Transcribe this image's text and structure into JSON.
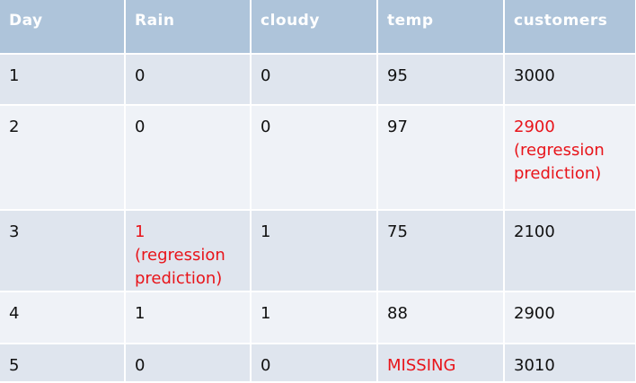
{
  "table": {
    "headers": [
      "Day",
      "Rain",
      "cloudy",
      "temp",
      "customers"
    ],
    "rows": [
      {
        "day": "1",
        "rain": "0",
        "cloudy": "0",
        "temp": "95",
        "customers": "3000"
      },
      {
        "day": "2",
        "rain": "0",
        "cloudy": "0",
        "temp": "97",
        "customers": "2900",
        "customers_note": "(regression prediction)"
      },
      {
        "day": "3",
        "rain": "1",
        "rain_note": "(regression prediction)",
        "cloudy": "1",
        "temp": "75",
        "customers": "2100"
      },
      {
        "day": "4",
        "rain": "1",
        "cloudy": "1",
        "temp": "88",
        "customers": "2900"
      },
      {
        "day": "5",
        "rain": "0",
        "cloudy": "0",
        "temp": "MISSING",
        "customers": "3010"
      }
    ],
    "colors": {
      "header_bg": "#aec4da",
      "row_odd_bg": "#dfe5ee",
      "row_even_bg": "#eff2f7",
      "highlight_text": "#e8141a"
    }
  }
}
